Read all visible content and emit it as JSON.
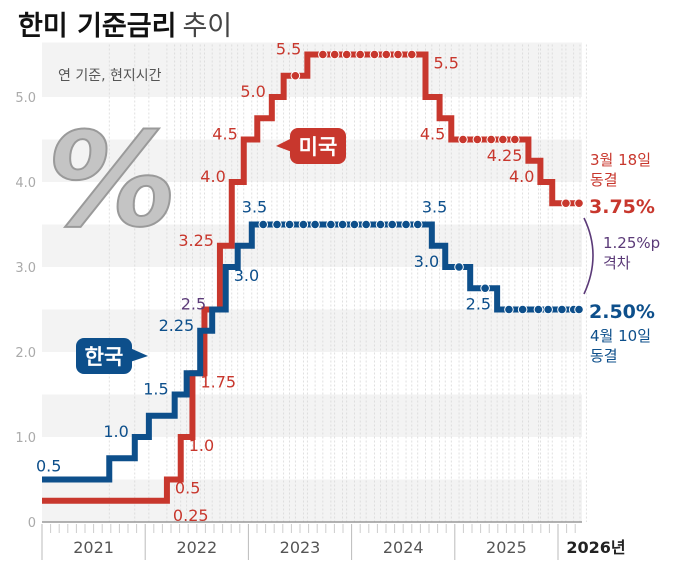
{
  "title": {
    "bold": "한미 기준금리",
    "light": "추이"
  },
  "note": "연 기준, 현지시간",
  "colors": {
    "us": "#c8372d",
    "korea": "#0d4f8b",
    "gap": "#5b3a78",
    "band": "#f3f3f3",
    "axis": "#999999"
  },
  "chart_data": {
    "type": "line",
    "step": true,
    "ylim": [
      0,
      5.5
    ],
    "yticks": [
      "0",
      "1.0",
      "2.0",
      "3.0",
      "4.0",
      "5.0"
    ],
    "xticks": [
      "2021",
      "2022",
      "2023",
      "2024",
      "2025",
      "2026년"
    ],
    "xlim": [
      "2021-01",
      "2026-04"
    ],
    "grid": "horizontal bands",
    "series": [
      {
        "name": "미국",
        "key": "us",
        "start_value": 0.25,
        "changes": [
          [
            "2022-03-17",
            0.5
          ],
          [
            "2022-05-05",
            1.0
          ],
          [
            "2022-06-16",
            1.75
          ],
          [
            "2022-07-28",
            2.5
          ],
          [
            "2022-09-22",
            3.25
          ],
          [
            "2022-11-03",
            4.0
          ],
          [
            "2022-12-15",
            4.5
          ],
          [
            "2023-02-02",
            4.75
          ],
          [
            "2023-03-23",
            5.0
          ],
          [
            "2023-05-04",
            5.25
          ],
          [
            "2023-07-27",
            5.5
          ],
          [
            "2024-09-19",
            5.0
          ],
          [
            "2024-11-08",
            4.75
          ],
          [
            "2024-12-19",
            4.5
          ],
          [
            "2025-09-18",
            4.25
          ],
          [
            "2025-10-30",
            4.0
          ],
          [
            "2025-12-11",
            3.75
          ]
        ],
        "holds": [
          [
            "2023-06-15",
            5.25
          ],
          [
            "2023-09-21",
            5.5
          ],
          [
            "2023-11-02",
            5.5
          ],
          [
            "2023-12-14",
            5.5
          ],
          [
            "2024-02-01",
            5.5
          ],
          [
            "2024-03-21",
            5.5
          ],
          [
            "2024-05-02",
            5.5
          ],
          [
            "2024-06-13",
            5.5
          ],
          [
            "2024-08-01",
            5.5
          ],
          [
            "2025-01-30",
            4.5
          ],
          [
            "2025-03-20",
            4.5
          ],
          [
            "2025-05-08",
            4.5
          ],
          [
            "2025-06-19",
            4.5
          ],
          [
            "2025-07-31",
            4.5
          ],
          [
            "2026-01-29",
            3.75
          ],
          [
            "2026-03-18",
            3.75
          ]
        ],
        "labels": [
          {
            "text": "0.25",
            "date": "2022-03-17",
            "value": 0.25,
            "side": "below-right"
          },
          {
            "text": "0.5",
            "date": "2022-03-17",
            "value": 0.5,
            "side": "right"
          },
          {
            "text": "1.0",
            "date": "2022-05-05",
            "value": 1.0,
            "side": "right"
          },
          {
            "text": "1.75",
            "date": "2022-06-16",
            "value": 1.75,
            "side": "right"
          },
          {
            "text": "3.25",
            "date": "2022-09-22",
            "value": 3.25,
            "side": "left"
          },
          {
            "text": "4.0",
            "date": "2022-11-03",
            "value": 4.0,
            "side": "left"
          },
          {
            "text": "4.5",
            "date": "2022-12-15",
            "value": 4.5,
            "side": "left"
          },
          {
            "text": "5.0",
            "date": "2023-03-23",
            "value": 5.0,
            "side": "left"
          },
          {
            "text": "5.5",
            "date": "2023-07-27",
            "value": 5.5,
            "side": "left"
          },
          {
            "text": "5.5",
            "date": "2024-09-19",
            "value": 5.5,
            "side": "right"
          },
          {
            "text": "4.5",
            "date": "2024-12-19",
            "value": 4.5,
            "side": "left"
          },
          {
            "text": "4.25",
            "date": "2025-09-18",
            "value": 4.25,
            "side": "left"
          },
          {
            "text": "4.0",
            "date": "2025-10-30",
            "value": 4.0,
            "side": "left"
          }
        ],
        "callout": "미국",
        "end": {
          "date_text": "3월 18일",
          "status": "동결",
          "value_text": "3.75%"
        }
      },
      {
        "name": "한국",
        "key": "korea",
        "start_value": 0.5,
        "changes": [
          [
            "2021-08-26",
            0.75
          ],
          [
            "2021-11-25",
            1.0
          ],
          [
            "2022-01-14",
            1.25
          ],
          [
            "2022-04-14",
            1.5
          ],
          [
            "2022-05-26",
            1.75
          ],
          [
            "2022-07-13",
            2.25
          ],
          [
            "2022-08-25",
            2.5
          ],
          [
            "2022-10-12",
            3.0
          ],
          [
            "2022-11-24",
            3.25
          ],
          [
            "2023-01-13",
            3.5
          ],
          [
            "2024-10-11",
            3.25
          ],
          [
            "2024-11-28",
            3.0
          ],
          [
            "2025-02-25",
            2.75
          ],
          [
            "2025-05-29",
            2.5
          ]
        ],
        "holds": [
          [
            "2023-02-23",
            3.5
          ],
          [
            "2023-04-11",
            3.5
          ],
          [
            "2023-05-25",
            3.5
          ],
          [
            "2023-07-13",
            3.5
          ],
          [
            "2023-08-24",
            3.5
          ],
          [
            "2023-10-19",
            3.5
          ],
          [
            "2023-11-30",
            3.5
          ],
          [
            "2024-01-11",
            3.5
          ],
          [
            "2024-02-22",
            3.5
          ],
          [
            "2024-04-12",
            3.5
          ],
          [
            "2024-05-23",
            3.5
          ],
          [
            "2024-07-11",
            3.5
          ],
          [
            "2024-08-22",
            3.5
          ],
          [
            "2025-01-16",
            3.0
          ],
          [
            "2025-04-17",
            2.75
          ],
          [
            "2025-07-10",
            2.5
          ],
          [
            "2025-08-28",
            2.5
          ],
          [
            "2025-10-23",
            2.5
          ],
          [
            "2025-11-27",
            2.5
          ],
          [
            "2026-01-15",
            2.5
          ],
          [
            "2026-02-26",
            2.5
          ],
          [
            "2026-04-10",
            2.5
          ]
        ],
        "labels": [
          {
            "text": "0.5",
            "date": "2021-01-01",
            "value": 0.5,
            "side": "above-right"
          },
          {
            "text": "1.0",
            "date": "2021-11-25",
            "value": 1.0,
            "side": "left"
          },
          {
            "text": "1.5",
            "date": "2022-04-14",
            "value": 1.5,
            "side": "left"
          },
          {
            "text": "2.25",
            "date": "2022-07-13",
            "value": 2.25,
            "side": "left"
          },
          {
            "text": "3.0",
            "date": "2022-10-12",
            "value": 3.0,
            "side": "right"
          },
          {
            "text": "3.5",
            "date": "2023-01-13",
            "value": 3.5,
            "side": "above"
          },
          {
            "text": "3.5",
            "date": "2024-10-11",
            "value": 3.5,
            "side": "above"
          },
          {
            "text": "3.0",
            "date": "2024-11-28",
            "value": 3.0,
            "side": "left"
          },
          {
            "text": "2.5",
            "date": "2025-05-29",
            "value": 2.5,
            "side": "left"
          }
        ],
        "callout": "한국",
        "end": {
          "date_text": "4월 10일",
          "status": "동결",
          "value_text": "2.50%"
        }
      }
    ],
    "shared_labels": [
      {
        "text": "2.5",
        "date": "2022-08-25",
        "value": 2.5,
        "side": "left"
      }
    ],
    "gap": {
      "value_text": "1.25%p",
      "label": "격차"
    }
  }
}
